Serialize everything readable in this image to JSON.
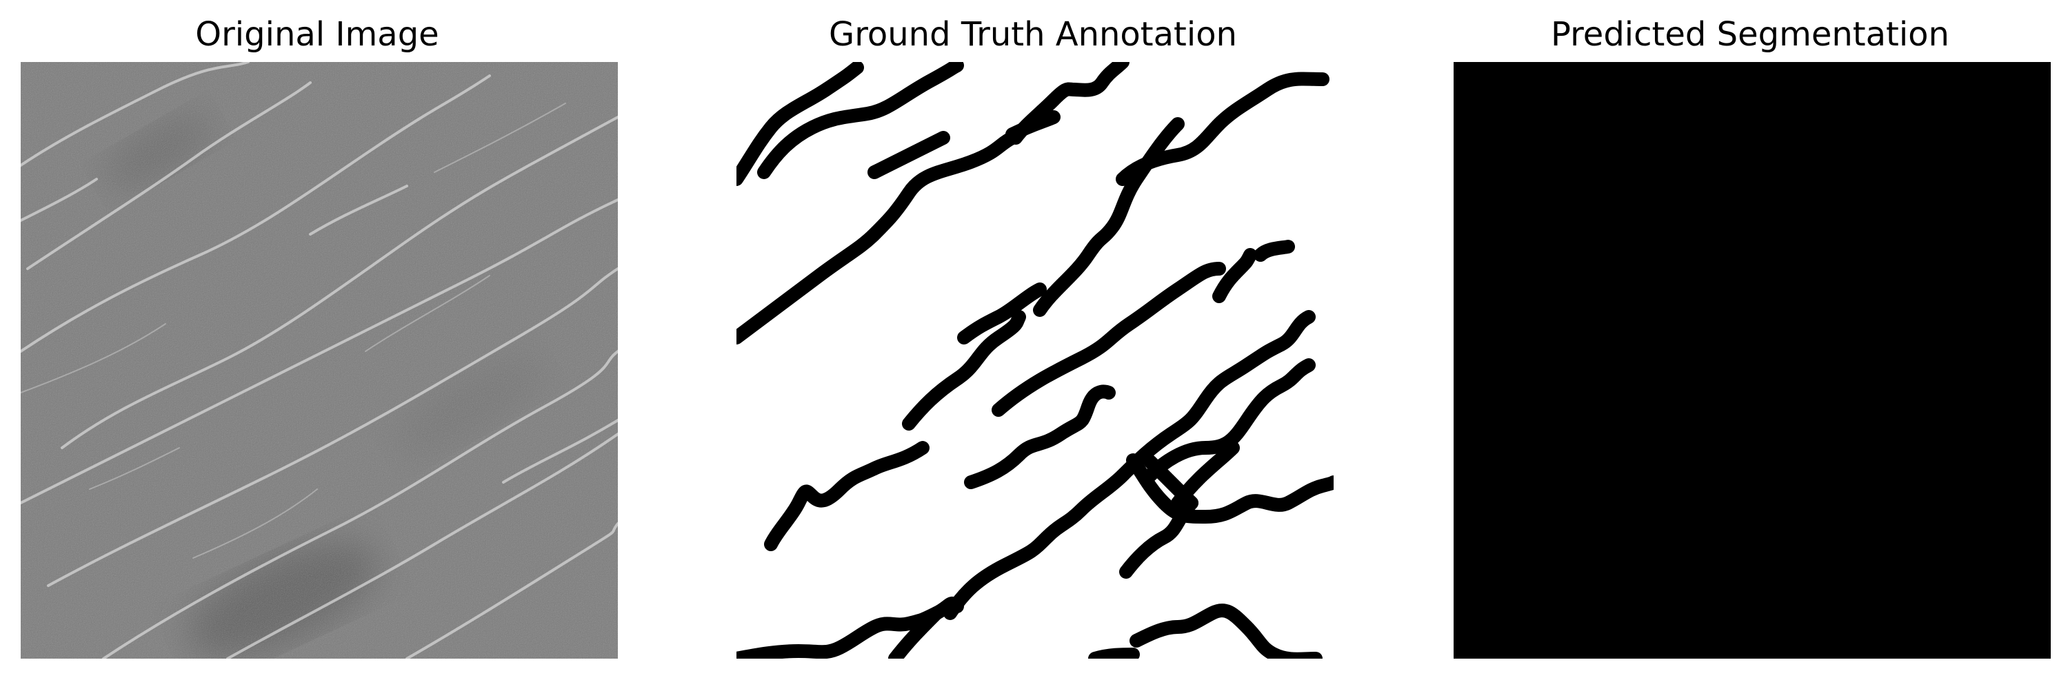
{
  "panels": [
    {
      "id": "original",
      "title": "Original Image",
      "content": "grayscale surface texture with diagonal light crack lines"
    },
    {
      "id": "ground_truth",
      "title": "Ground Truth Annotation",
      "content": "black crack strokes on white background"
    },
    {
      "id": "predicted",
      "title": "Predicted Segmentation",
      "content": "solid black mask"
    }
  ],
  "colors": {
    "background": "#ffffff",
    "texture_base": "#7a7a7a",
    "texture_crack": "#d7d7d7",
    "mask_black": "#000000",
    "mask_white": "#ffffff"
  }
}
